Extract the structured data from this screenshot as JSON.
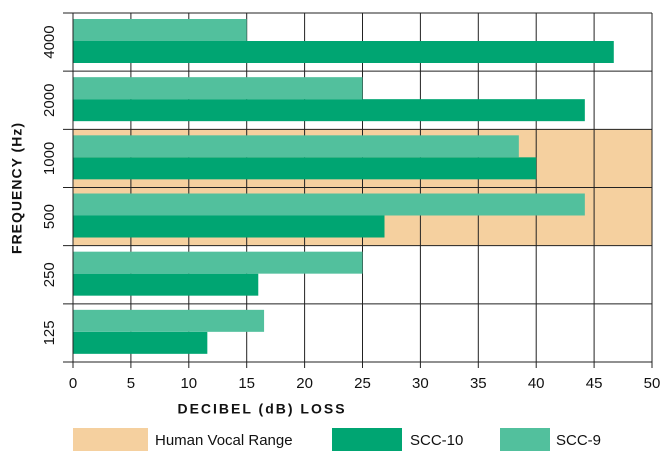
{
  "chart_data": {
    "type": "hbar",
    "categories": [
      "4000",
      "2000",
      "1000",
      "500",
      "250",
      "125"
    ],
    "series": [
      {
        "name": "SCC-10",
        "color": "#00a572",
        "values": [
          46.7,
          44.2,
          40.0,
          26.9,
          16.0,
          11.6
        ]
      },
      {
        "name": "SCC-9",
        "color": "#52c09d",
        "values": [
          15.0,
          25.0,
          38.5,
          44.2,
          25.0,
          16.5
        ]
      }
    ],
    "highlight": {
      "name": "Human Vocal Range",
      "color": "#f5d09f",
      "categories": [
        "1000",
        "500"
      ]
    },
    "xlabel": "DECIBEL (dB) LOSS",
    "ylabel": "FREQUENCY (Hz)",
    "xlim": [
      0,
      50
    ],
    "xticks": [
      0,
      5,
      10,
      15,
      20,
      25,
      30,
      35,
      40,
      45,
      50
    ],
    "grid": true
  }
}
